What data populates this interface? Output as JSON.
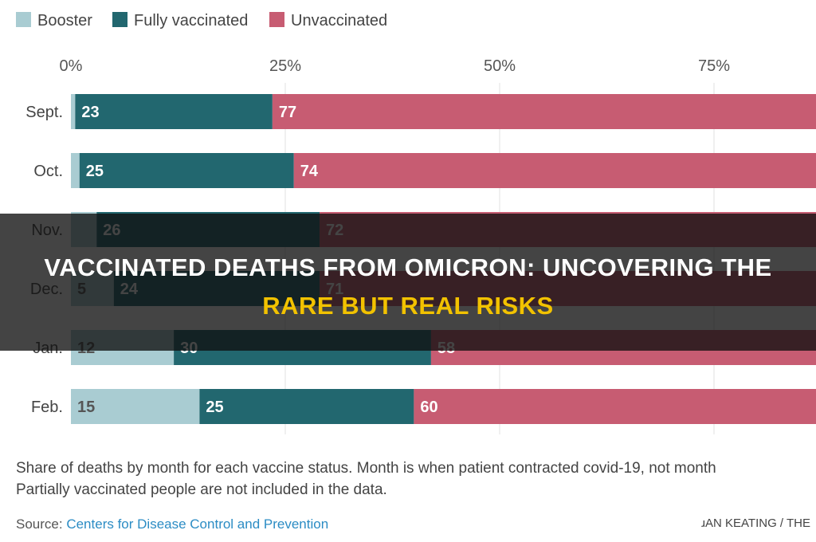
{
  "headline": {
    "line1": "VACCINATED DEATHS FROM OMICRON: UNCOVERING THE",
    "line2": "RARE BUT REAL RISKS",
    "line2_color": "#f2c200"
  },
  "chart_data": {
    "type": "bar",
    "orientation": "horizontal",
    "stacked": true,
    "categories": [
      "Sept.",
      "Oct.",
      "Nov.",
      "Dec.",
      "Jan.",
      "Feb."
    ],
    "series": [
      {
        "name": "Booster",
        "color": "#a9ccd2",
        "values": [
          0.5,
          1,
          3,
          5,
          12,
          15
        ],
        "labels": [
          "",
          "",
          "",
          "5",
          "12",
          "15"
        ]
      },
      {
        "name": "Fully vaccinated",
        "color": "#22676f",
        "values": [
          23,
          25,
          26,
          24,
          30,
          25
        ],
        "labels": [
          "23",
          "25",
          "26",
          "24",
          "30",
          "25"
        ]
      },
      {
        "name": "Unvaccinated",
        "color": "#c75c72",
        "values": [
          77,
          74,
          72,
          71,
          58,
          60
        ],
        "labels": [
          "77",
          "74",
          "72",
          "71",
          "58",
          "60"
        ]
      }
    ],
    "xticks": [
      "0%",
      "25%",
      "50%",
      "75%"
    ],
    "xtick_values": [
      0,
      25,
      50,
      75
    ],
    "xlim": [
      0,
      100
    ],
    "legend": "top-left",
    "grid": true
  },
  "notes": {
    "line1": "Share of deaths by month for each vaccine status. Month is when patient contracted covid-19, not month",
    "line2": "Partially vaccinated people are not included in the data."
  },
  "source": {
    "label": "Source:",
    "link_text": "Centers for Disease Control and Prevention",
    "link_color": "#2b8cc4"
  },
  "credit": "ɹAN KEATING / THE"
}
